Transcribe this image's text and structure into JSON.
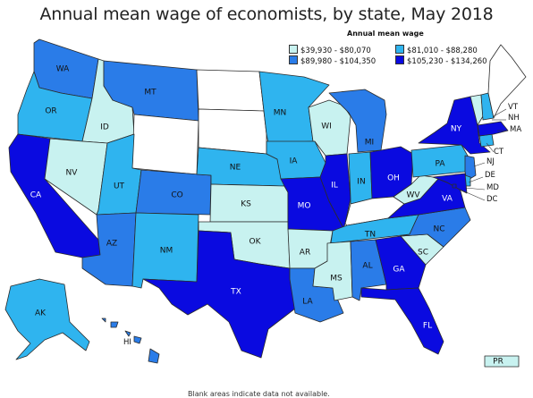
{
  "title": "Annual mean wage of economists, by state, May 2018",
  "legend": {
    "title": "Annual mean wage",
    "items": [
      {
        "label": "$39,930 - $80,070",
        "color": "#c8f2f0"
      },
      {
        "label": "$81,010 - $88,280",
        "color": "#2fb4ef"
      },
      {
        "label": "$89,980 - $104,350",
        "color": "#2a7ce8"
      },
      {
        "label": "$105,230 - $134,260",
        "color": "#0a0ae0"
      }
    ]
  },
  "footnote": "Blank areas indicate data not available.",
  "states": {
    "WA": {
      "label": "WA",
      "color": "#2a7ce8"
    },
    "OR": {
      "label": "OR",
      "color": "#2fb4ef"
    },
    "CA": {
      "label": "CA",
      "color": "#0a0ae0"
    },
    "ID": {
      "label": "ID",
      "color": "#c8f2f0"
    },
    "NV": {
      "label": "NV",
      "color": "#c8f2f0"
    },
    "MT": {
      "label": "MT",
      "color": "#2a7ce8"
    },
    "WY": {
      "label": "",
      "color": "#ffffff"
    },
    "UT": {
      "label": "UT",
      "color": "#2fb4ef"
    },
    "AZ": {
      "label": "AZ",
      "color": "#2a7ce8"
    },
    "CO": {
      "label": "CO",
      "color": "#2a7ce8"
    },
    "NM": {
      "label": "NM",
      "color": "#2fb4ef"
    },
    "ND": {
      "label": "",
      "color": "#ffffff"
    },
    "SD": {
      "label": "",
      "color": "#ffffff"
    },
    "NE": {
      "label": "NE",
      "color": "#2fb4ef"
    },
    "KS": {
      "label": "KS",
      "color": "#c8f2f0"
    },
    "OK": {
      "label": "OK",
      "color": "#c8f2f0"
    },
    "TX": {
      "label": "TX",
      "color": "#0a0ae0"
    },
    "MN": {
      "label": "MN",
      "color": "#2fb4ef"
    },
    "IA": {
      "label": "IA",
      "color": "#2fb4ef"
    },
    "MO": {
      "label": "MO",
      "color": "#0a0ae0"
    },
    "AR": {
      "label": "AR",
      "color": "#c8f2f0"
    },
    "LA": {
      "label": "LA",
      "color": "#2a7ce8"
    },
    "WI": {
      "label": "WI",
      "color": "#c8f2f0"
    },
    "IL": {
      "label": "IL",
      "color": "#0a0ae0"
    },
    "MI": {
      "label": "MI",
      "color": "#2a7ce8"
    },
    "IN": {
      "label": "IN",
      "color": "#2fb4ef"
    },
    "OH": {
      "label": "OH",
      "color": "#0a0ae0"
    },
    "KY": {
      "label": "",
      "color": "#ffffff"
    },
    "TN": {
      "label": "TN",
      "color": "#2fb4ef"
    },
    "MS": {
      "label": "MS",
      "color": "#c8f2f0"
    },
    "AL": {
      "label": "AL",
      "color": "#2a7ce8"
    },
    "GA": {
      "label": "GA",
      "color": "#0a0ae0"
    },
    "FL": {
      "label": "FL",
      "color": "#0a0ae0"
    },
    "SC": {
      "label": "SC",
      "color": "#c8f2f0"
    },
    "NC": {
      "label": "NC",
      "color": "#2a7ce8"
    },
    "VA": {
      "label": "VA",
      "color": "#0a0ae0"
    },
    "WV": {
      "label": "WV",
      "color": "#c8f2f0"
    },
    "PA": {
      "label": "PA",
      "color": "#2fb4ef"
    },
    "NY": {
      "label": "NY",
      "color": "#0a0ae0"
    },
    "NJ": {
      "label": "NJ",
      "color": "#2a7ce8"
    },
    "DE": {
      "label": "DE",
      "color": "#2fb4ef"
    },
    "MD": {
      "label": "MD",
      "color": "#0a0ae0"
    },
    "DC": {
      "label": "DC",
      "color": "#0a0ae0"
    },
    "CT": {
      "label": "CT",
      "color": "#2fb4ef"
    },
    "MA": {
      "label": "MA",
      "color": "#0a0ae0"
    },
    "VT": {
      "label": "VT",
      "color": "#c8f2f0"
    },
    "NH": {
      "label": "NH",
      "color": "#2fb4ef"
    },
    "ME": {
      "label": "",
      "color": "#ffffff"
    },
    "AK": {
      "label": "AK",
      "color": "#2fb4ef"
    },
    "HI": {
      "label": "HI",
      "color": "#2a7ce8"
    },
    "PR": {
      "label": "PR",
      "color": "#c8f2f0"
    }
  }
}
